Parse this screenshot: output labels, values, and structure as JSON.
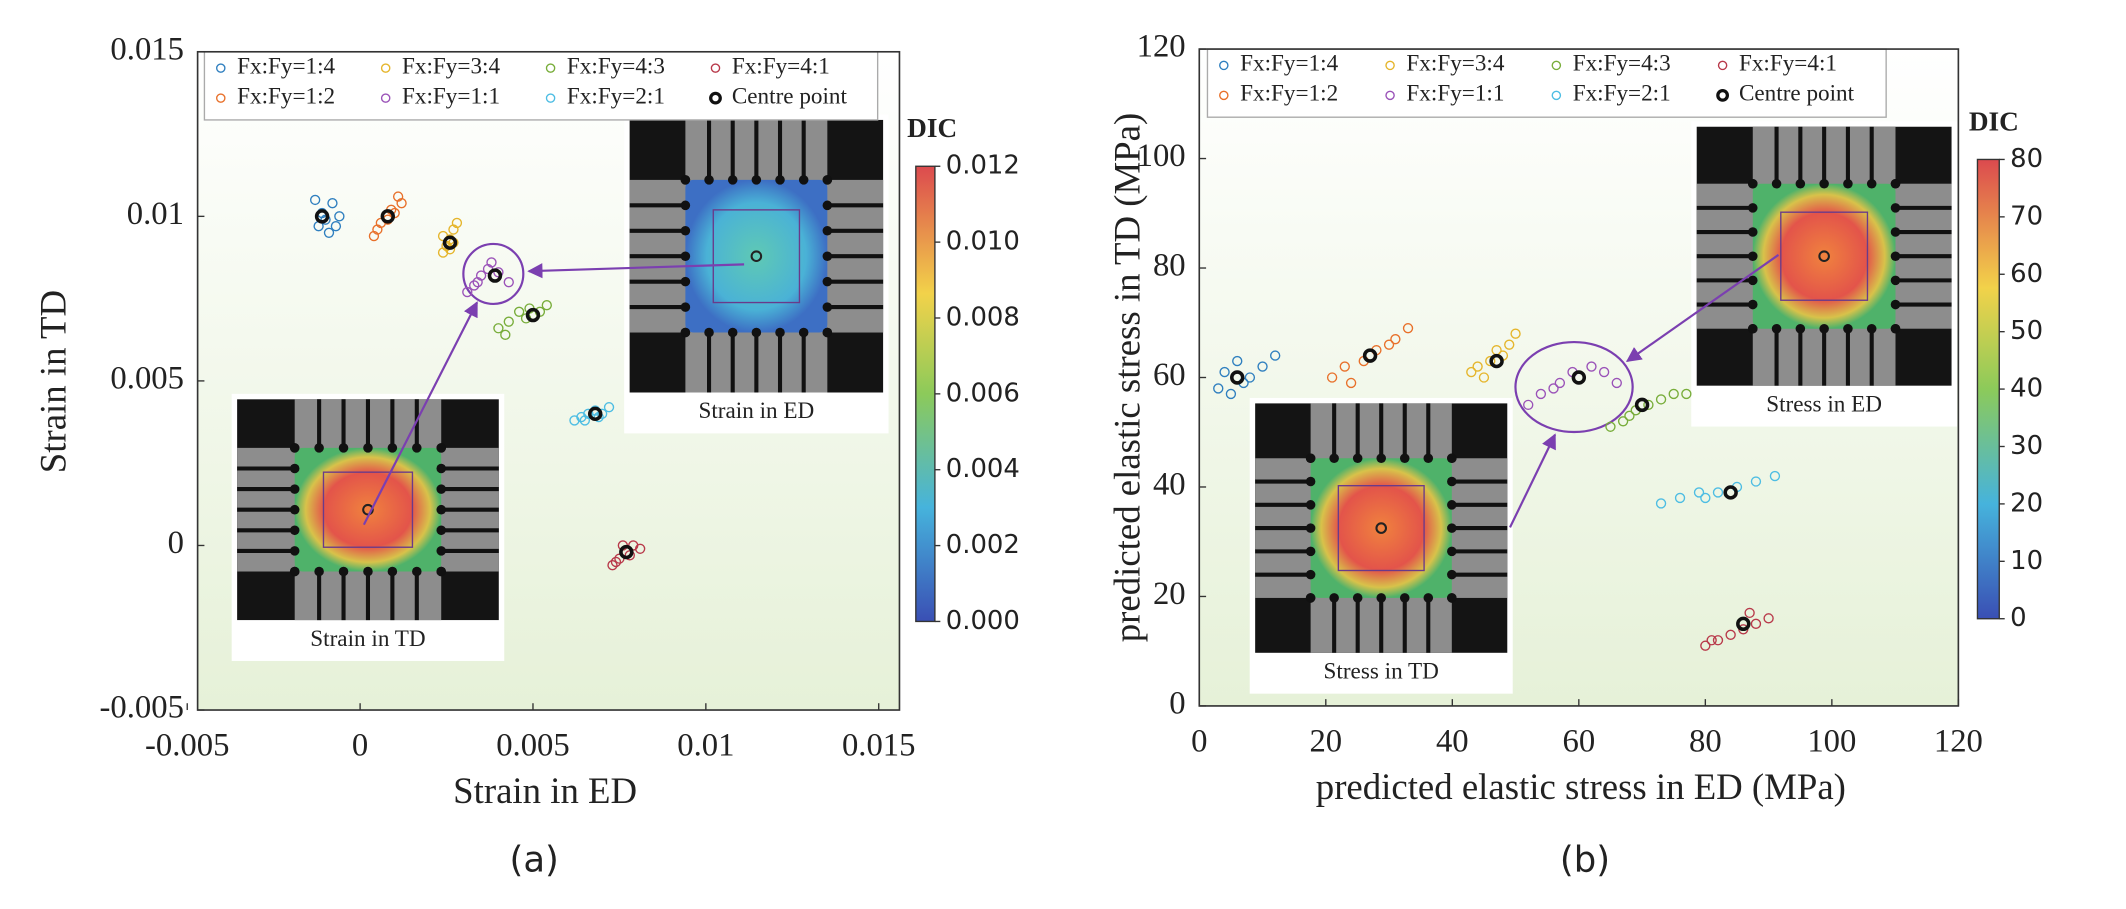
{
  "chart_data": [
    {
      "type": "scatter",
      "label": "(a)",
      "xlabel": "Strain in ED",
      "ylabel": "Strain in TD",
      "xlim": [
        -0.0047,
        0.0156
      ],
      "ylim": [
        -0.005,
        0.015
      ],
      "xticks": [
        -0.005,
        0,
        0.005,
        0.01,
        0.015
      ],
      "yticks": [
        -0.005,
        0,
        0.005,
        0.01,
        0.015
      ],
      "legend": "upper left",
      "series": [
        {
          "name": "Fx:Fy=1:4",
          "color": "#2f7fbf",
          "x": [
            -0.0013,
            -0.0011,
            -0.0008,
            -0.0012,
            -0.0009,
            -0.0006,
            -0.001,
            -0.0007
          ],
          "values": [
            0.0105,
            0.0101,
            0.0104,
            0.0097,
            0.0095,
            0.01,
            0.0099,
            0.0097
          ]
        },
        {
          "name": "Fx:Fy=1:2",
          "color": "#e8702a",
          "x": [
            0.0005,
            0.0008,
            0.0011,
            0.0004,
            0.0009,
            0.0012,
            0.0006,
            0.001
          ],
          "values": [
            0.0096,
            0.0099,
            0.0106,
            0.0094,
            0.0102,
            0.0104,
            0.0098,
            0.0101
          ]
        },
        {
          "name": "Fx:Fy=3:4",
          "color": "#e5b52b",
          "x": [
            0.0024,
            0.0026,
            0.0027,
            0.0025,
            0.0028,
            0.0024,
            0.0026,
            0.0027
          ],
          "values": [
            0.0089,
            0.0093,
            0.0096,
            0.0091,
            0.0098,
            0.0094,
            0.009,
            0.0092
          ]
        },
        {
          "name": "Fx:Fy=1:1",
          "color": "#9a52b8",
          "x": [
            0.0031,
            0.0034,
            0.0037,
            0.004,
            0.0043,
            0.0033,
            0.0038,
            0.0035
          ],
          "values": [
            0.0077,
            0.008,
            0.0084,
            0.0083,
            0.008,
            0.0079,
            0.0086,
            0.0082
          ]
        },
        {
          "name": "Fx:Fy=4:3",
          "color": "#78ad3a",
          "x": [
            0.004,
            0.0043,
            0.0046,
            0.0049,
            0.0052,
            0.0054,
            0.0042,
            0.0048
          ],
          "values": [
            0.0066,
            0.0068,
            0.0071,
            0.0072,
            0.0071,
            0.0073,
            0.0064,
            0.0069
          ]
        },
        {
          "name": "Fx:Fy=2:1",
          "color": "#4dbde3",
          "x": [
            0.0062,
            0.0064,
            0.0066,
            0.0068,
            0.007,
            0.0072,
            0.0065,
            0.0069
          ],
          "values": [
            0.0038,
            0.0039,
            0.004,
            0.0041,
            0.004,
            0.0042,
            0.0038,
            0.0039
          ]
        },
        {
          "name": "Fx:Fy=4:1",
          "color": "#b8394a",
          "x": [
            0.0073,
            0.0075,
            0.0077,
            0.0079,
            0.0081,
            0.0074,
            0.0078,
            0.0076
          ],
          "values": [
            -0.0006,
            -0.0004,
            -0.0002,
            0,
            -0.0001,
            -0.0005,
            -0.0003,
            0
          ]
        },
        {
          "name": "Centre point",
          "color": "#111111",
          "x": [
            -0.0011,
            0.0008,
            0.0026,
            0.0039,
            0.005,
            0.0068,
            0.0077
          ],
          "values": [
            0.01,
            0.01,
            0.0092,
            0.0082,
            0.007,
            0.004,
            -0.0002
          ]
        }
      ],
      "colorbar": {
        "title": "DIC",
        "lim": [
          0,
          0.012
        ],
        "ticks": [
          {
            "value": 0,
            "label": "0.000"
          },
          0.002,
          0.004,
          0.006,
          0.008,
          {
            "value": 0.01,
            "label": "0.010"
          },
          0.012
        ]
      },
      "annotations": [
        "Strain in ED",
        "Strain in TD"
      ]
    },
    {
      "type": "scatter",
      "label": "(b)",
      "xlabel": "predicted elastic stress in ED (MPa)",
      "ylabel": "predicted elastic stress in TD (MPa)",
      "xlim": [
        0,
        120
      ],
      "ylim": [
        0,
        120
      ],
      "xticks": [
        0,
        20,
        40,
        60,
        80,
        100,
        120
      ],
      "yticks": [
        0,
        20,
        40,
        60,
        80,
        100,
        120
      ],
      "legend": "upper left",
      "series": [
        {
          "name": "Fx:Fy=1:4",
          "color": "#2f7fbf",
          "x": [
            3,
            4,
            6,
            8,
            10,
            12,
            5,
            7
          ],
          "values": [
            58,
            61,
            63,
            60,
            62,
            64,
            57,
            59
          ]
        },
        {
          "name": "Fx:Fy=1:2",
          "color": "#e8702a",
          "x": [
            21,
            23,
            26,
            28,
            30,
            33,
            24,
            31
          ],
          "values": [
            60,
            62,
            63,
            65,
            66,
            69,
            59,
            67
          ]
        },
        {
          "name": "Fx:Fy=3:4",
          "color": "#e5b52b",
          "x": [
            43,
            44,
            46,
            47,
            49,
            50,
            45,
            48
          ],
          "values": [
            61,
            62,
            63,
            65,
            66,
            68,
            60,
            64
          ]
        },
        {
          "name": "Fx:Fy=1:1",
          "color": "#9a52b8",
          "x": [
            52,
            54,
            57,
            59,
            62,
            64,
            66,
            56
          ],
          "values": [
            55,
            57,
            59,
            61,
            62,
            61,
            59,
            58
          ]
        },
        {
          "name": "Fx:Fy=4:3",
          "color": "#78ad3a",
          "x": [
            65,
            67,
            69,
            71,
            73,
            75,
            77,
            68
          ],
          "values": [
            51,
            52,
            54,
            55,
            56,
            57,
            57,
            53
          ]
        },
        {
          "name": "Fx:Fy=2:1",
          "color": "#4dbde3",
          "x": [
            73,
            76,
            79,
            82,
            85,
            88,
            91,
            80
          ],
          "values": [
            37,
            38,
            39,
            39,
            40,
            41,
            42,
            38
          ]
        },
        {
          "name": "Fx:Fy=4:1",
          "color": "#b8394a",
          "x": [
            80,
            82,
            84,
            86,
            88,
            90,
            81,
            87
          ],
          "values": [
            11,
            12,
            13,
            14,
            15,
            16,
            12,
            17
          ]
        },
        {
          "name": "Centre point",
          "color": "#111111",
          "x": [
            6,
            27,
            47,
            60,
            70,
            84,
            86
          ],
          "values": [
            60,
            64,
            63,
            60,
            55,
            39,
            15
          ]
        }
      ],
      "colorbar": {
        "title": "DIC",
        "lim": [
          0,
          80
        ],
        "ticks": [
          0,
          10,
          20,
          30,
          40,
          50,
          60,
          70,
          80
        ]
      },
      "annotations": [
        "Stress in ED",
        "Stress in TD"
      ]
    }
  ]
}
